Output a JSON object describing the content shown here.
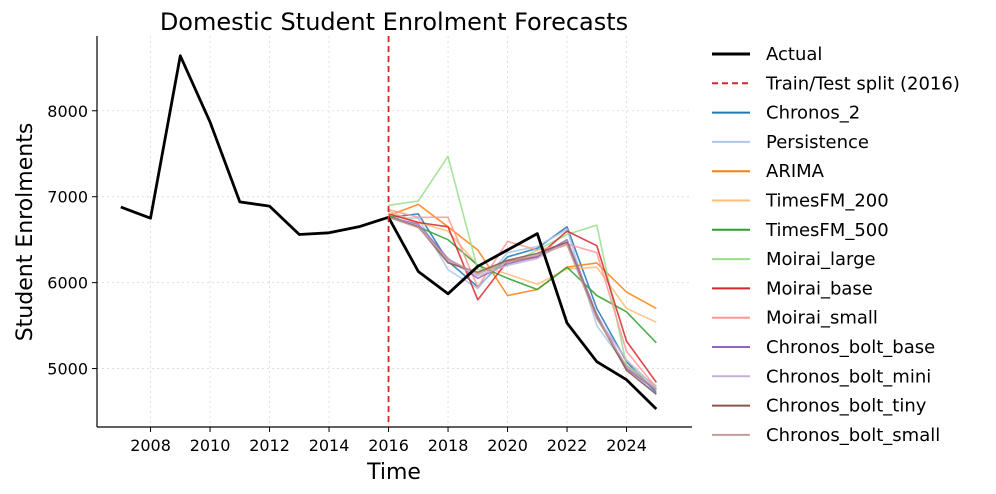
{
  "chart_data": {
    "type": "line",
    "title": "Domestic Student Enrolment Forecasts",
    "xlabel": "Time",
    "ylabel": "Student Enrolments",
    "xlim": [
      2006.2,
      2026.2
    ],
    "ylim": [
      4320,
      8870
    ],
    "xticks": [
      2008,
      2010,
      2012,
      2014,
      2016,
      2018,
      2020,
      2022,
      2024
    ],
    "yticks": [
      5000,
      6000,
      7000,
      8000
    ],
    "grid": true,
    "legend_position": "outside-right",
    "split": {
      "label": "Train/Test split (2016)",
      "x": 2016,
      "color": "#d62728"
    },
    "series": [
      {
        "name": "Actual",
        "color": "#000000",
        "x": [
          2007,
          2008,
          2009,
          2010,
          2011,
          2012,
          2013,
          2014,
          2015,
          2016,
          2017,
          2018,
          2019,
          2020,
          2021,
          2022,
          2023,
          2024,
          2025
        ],
        "values": [
          6880,
          6750,
          8640,
          7870,
          6940,
          6890,
          6560,
          6580,
          6650,
          6760,
          6130,
          5870,
          6190,
          6380,
          6570,
          5530,
          5080,
          4870,
          4530
        ]
      },
      {
        "name": "Chronos_2",
        "color": "#1f77b4",
        "x": [
          2016,
          2017,
          2018,
          2019,
          2020,
          2021,
          2022,
          2023,
          2024,
          2025
        ],
        "values": [
          6760,
          6800,
          6250,
          5950,
          6300,
          6400,
          6650,
          5700,
          5080,
          4720
        ]
      },
      {
        "name": "Persistence",
        "color": "#aec7e8",
        "x": [
          2016,
          2017,
          2018,
          2019,
          2020,
          2021,
          2022,
          2023,
          2024,
          2025
        ],
        "values": [
          6760,
          6750,
          6150,
          5930,
          6350,
          6420,
          6620,
          5500,
          5020,
          4700
        ]
      },
      {
        "name": "ARIMA",
        "color": "#ff7f0e",
        "x": [
          2016,
          2017,
          2018,
          2019,
          2020,
          2021,
          2022,
          2023,
          2024,
          2025
        ],
        "values": [
          6780,
          6910,
          6650,
          6380,
          5850,
          5920,
          6180,
          6230,
          5890,
          5700
        ]
      },
      {
        "name": "TimesFM_200",
        "color": "#ffbb78",
        "x": [
          2016,
          2017,
          2018,
          2019,
          2020,
          2021,
          2022,
          2023,
          2024,
          2025
        ],
        "values": [
          6830,
          6700,
          6600,
          6200,
          6100,
          5980,
          6160,
          6180,
          5700,
          5540
        ]
      },
      {
        "name": "TimesFM_500",
        "color": "#2ca02c",
        "x": [
          2016,
          2017,
          2018,
          2019,
          2020,
          2021,
          2022,
          2023,
          2024,
          2025
        ],
        "values": [
          6780,
          6650,
          6500,
          6200,
          6050,
          5920,
          6180,
          5850,
          5660,
          5300
        ]
      },
      {
        "name": "Moirai_large",
        "color": "#98df8a",
        "x": [
          2016,
          2017,
          2018,
          2019,
          2020,
          2021,
          2022,
          2023,
          2024,
          2025
        ],
        "values": [
          6900,
          6950,
          7470,
          6150,
          6200,
          6380,
          6560,
          6670,
          5040,
          4800
        ]
      },
      {
        "name": "Moirai_base",
        "color": "#d62728",
        "x": [
          2016,
          2017,
          2018,
          2019,
          2020,
          2021,
          2022,
          2023,
          2024,
          2025
        ],
        "values": [
          6800,
          6700,
          6650,
          5800,
          6250,
          6300,
          6600,
          6430,
          5320,
          4840
        ]
      },
      {
        "name": "Moirai_small",
        "color": "#ff9896",
        "x": [
          2016,
          2017,
          2018,
          2019,
          2020,
          2021,
          2022,
          2023,
          2024,
          2025
        ],
        "values": [
          6850,
          6760,
          6760,
          5950,
          6480,
          6380,
          6450,
          6350,
          5200,
          4780
        ]
      },
      {
        "name": "Chronos_bolt_base",
        "color": "#9467bd",
        "x": [
          2016,
          2017,
          2018,
          2019,
          2020,
          2021,
          2022,
          2023,
          2024,
          2025
        ],
        "values": [
          6760,
          6680,
          6280,
          6050,
          6220,
          6300,
          6500,
          5630,
          5000,
          4750
        ]
      },
      {
        "name": "Chronos_bolt_mini",
        "color": "#c5b0d5",
        "x": [
          2016,
          2017,
          2018,
          2019,
          2020,
          2021,
          2022,
          2023,
          2024,
          2025
        ],
        "values": [
          6760,
          6660,
          6250,
          6080,
          6200,
          6280,
          6480,
          5600,
          5100,
          4770
        ]
      },
      {
        "name": "Chronos_bolt_tiny",
        "color": "#8c564b",
        "x": [
          2016,
          2017,
          2018,
          2019,
          2020,
          2021,
          2022,
          2023,
          2024,
          2025
        ],
        "values": [
          6760,
          6650,
          6230,
          6120,
          6260,
          6340,
          6470,
          5600,
          4980,
          4700
        ]
      },
      {
        "name": "Chronos_bolt_small",
        "color": "#c49c94",
        "x": [
          2016,
          2017,
          2018,
          2019,
          2020,
          2021,
          2022,
          2023,
          2024,
          2025
        ],
        "values": [
          6760,
          6640,
          6270,
          6100,
          6240,
          6320,
          6440,
          5580,
          5030,
          4760
        ]
      }
    ]
  }
}
